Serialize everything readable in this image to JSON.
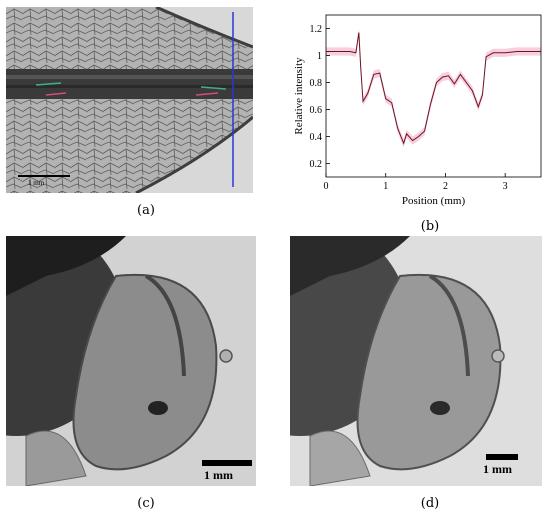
{
  "figure": {
    "labels": {
      "a": "(a)",
      "b": "(b)",
      "c": "(c)",
      "d": "(d)"
    },
    "panel_a": {
      "scale_bar_label": "1 mm"
    },
    "panel_c": {
      "scale_bar_label": "1 mm"
    },
    "panel_d": {
      "scale_bar_label": "1 mm"
    }
  },
  "chart_data": {
    "type": "line",
    "xlabel": "Position (mm)",
    "ylabel": "Relative intensity",
    "xlim": [
      0,
      3.6
    ],
    "ylim": [
      0.1,
      1.3
    ],
    "xticks": [
      0,
      1,
      2,
      3
    ],
    "yticks": [
      0.2,
      0.4,
      0.6,
      0.8,
      1,
      1.2
    ],
    "xtick_labels": [
      "0",
      "1",
      "2",
      "3"
    ],
    "ytick_labels": [
      "0.2",
      "0.4",
      "0.6",
      "0.8",
      "1",
      "1.2"
    ],
    "grid": false,
    "line_color": "#6b1420",
    "band_color": "#f4b9cf",
    "x": [
      0.0,
      0.2,
      0.4,
      0.5,
      0.55,
      0.58,
      0.62,
      0.7,
      0.8,
      0.9,
      1.0,
      1.1,
      1.2,
      1.3,
      1.35,
      1.45,
      1.55,
      1.65,
      1.75,
      1.85,
      1.95,
      2.05,
      2.15,
      2.25,
      2.35,
      2.45,
      2.55,
      2.62,
      2.68,
      2.8,
      3.0,
      3.2,
      3.4,
      3.6
    ],
    "y": [
      1.03,
      1.03,
      1.03,
      1.02,
      1.17,
      0.92,
      0.66,
      0.72,
      0.86,
      0.87,
      0.68,
      0.65,
      0.46,
      0.35,
      0.42,
      0.37,
      0.4,
      0.44,
      0.64,
      0.8,
      0.84,
      0.85,
      0.79,
      0.86,
      0.8,
      0.74,
      0.62,
      0.71,
      0.99,
      1.02,
      1.02,
      1.03,
      1.03,
      1.03
    ]
  }
}
